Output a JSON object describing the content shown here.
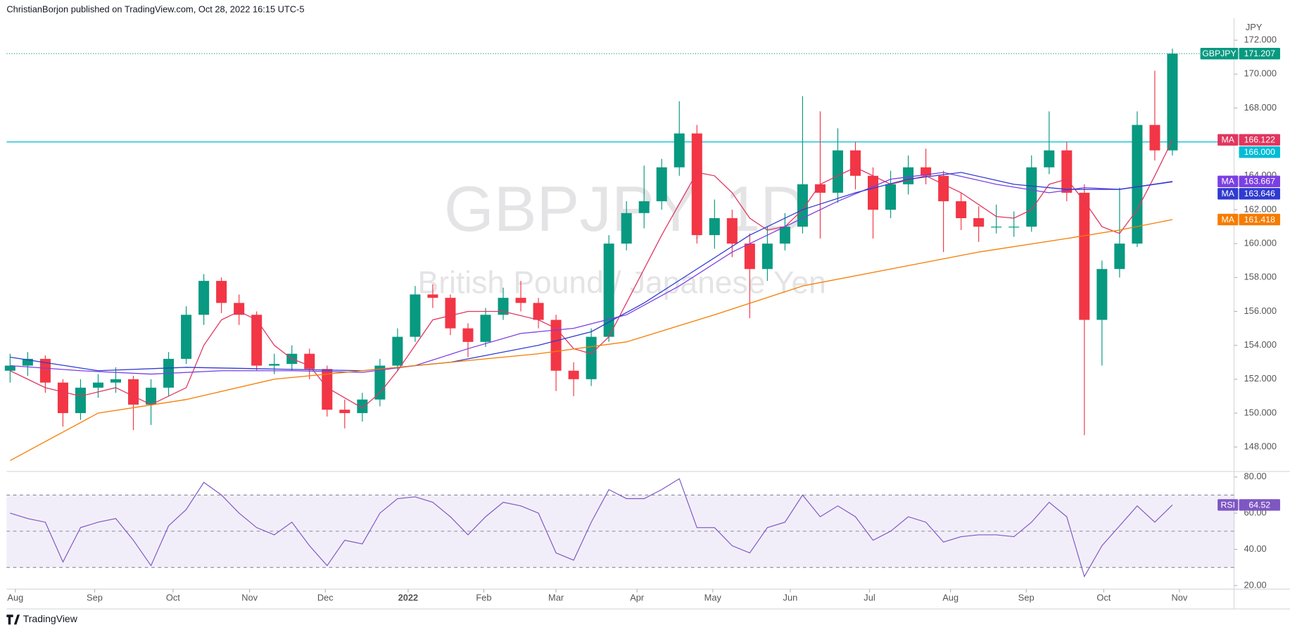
{
  "chart_data": {
    "type": "candlestick",
    "header": "ChristianBorjon published on TradingView.com, Oct 28, 2022 16:15 UTC-5",
    "symbol": "GBPJPY",
    "symbol_watermark": "GBPJPY, 1D",
    "description": "British Pound / Japanese Yen",
    "y_unit": "JPY",
    "footer": "TradingView",
    "grid": false,
    "up_color": "#089981",
    "down_color": "#f23645",
    "xlim": [
      -0.2,
      69.5
    ],
    "xticks": [
      {
        "value": 0.3,
        "label": "Aug"
      },
      {
        "value": 4.8,
        "label": "Sep"
      },
      {
        "value": 9.25,
        "label": "Oct"
      },
      {
        "value": 13.6,
        "label": "Nov"
      },
      {
        "value": 17.9,
        "label": "Dec"
      },
      {
        "value": 22.6,
        "label": "2022"
      },
      {
        "value": 26.9,
        "label": "Feb"
      },
      {
        "value": 31,
        "label": "Mar"
      },
      {
        "value": 35.6,
        "label": "Apr"
      },
      {
        "value": 39.9,
        "label": "May"
      },
      {
        "value": 44.3,
        "label": "Jun"
      },
      {
        "value": 48.8,
        "label": "Jul"
      },
      {
        "value": 53.4,
        "label": "Aug"
      },
      {
        "value": 57.7,
        "label": "Sep"
      },
      {
        "value": 62.1,
        "label": "Oct"
      },
      {
        "value": 66.4,
        "label": "Nov"
      }
    ],
    "ylim": [
      146.7,
      173.3
    ],
    "yticks": [
      {
        "value": 148,
        "label": "148.000"
      },
      {
        "value": 150,
        "label": "150.000"
      },
      {
        "value": 152,
        "label": "152.000"
      },
      {
        "value": 154,
        "label": "154.000"
      },
      {
        "value": 156,
        "label": "156.000"
      },
      {
        "value": 158,
        "label": "158.000"
      },
      {
        "value": 160,
        "label": "160.000"
      },
      {
        "value": 162,
        "label": "162.000"
      },
      {
        "value": 164,
        "label": "164.000"
      },
      {
        "value": 166,
        "label": "166.000"
      },
      {
        "value": 168,
        "label": "168.000"
      },
      {
        "value": 170,
        "label": "170.000"
      },
      {
        "value": 172,
        "label": "172.000"
      }
    ],
    "open": [
      152.5,
      152.8,
      153.2,
      151.8,
      150.0,
      151.5,
      151.8,
      152.0,
      150.5,
      151.5,
      153.2,
      155.8,
      157.8,
      156.5,
      155.8,
      152.8,
      152.9,
      153.5,
      152.6,
      150.2,
      150.0,
      150.8,
      152.8,
      154.5,
      157.0,
      156.8,
      155.0,
      154.2,
      155.8,
      156.8,
      156.5,
      155.5,
      152.5,
      152.0,
      154.5,
      160.0,
      161.8,
      162.5,
      164.5,
      166.5,
      160.5,
      161.5,
      160.0,
      158.5,
      160.0,
      161.0,
      163.5,
      163.0,
      165.5,
      164.0,
      162.0,
      163.5,
      164.5,
      164.0,
      162.5,
      161.5,
      161.0,
      161.0,
      161.0,
      164.5,
      165.5,
      163.0,
      155.5,
      158.5,
      160.0,
      167.0,
      165.5
    ],
    "high": [
      153.5,
      153.6,
      153.4,
      152.0,
      152.0,
      152.3,
      152.7,
      152.2,
      152.0,
      153.6,
      156.3,
      158.2,
      158.0,
      157.0,
      156.0,
      153.5,
      154.0,
      153.8,
      152.8,
      150.8,
      151.2,
      153.2,
      155.0,
      157.5,
      157.6,
      157.0,
      155.3,
      156.2,
      157.4,
      157.8,
      156.8,
      155.8,
      153.0,
      155.0,
      160.5,
      162.5,
      164.6,
      165.0,
      168.4,
      167.0,
      162.6,
      162.0,
      160.6,
      161.0,
      161.8,
      168.7,
      167.8,
      166.8,
      166.0,
      164.5,
      164.3,
      165.2,
      165.6,
      164.3,
      163.0,
      162.2,
      162.3,
      161.9,
      165.2,
      167.8,
      166.0,
      163.5,
      159.0,
      163.3,
      167.8,
      170.2,
      171.5
    ],
    "low": [
      151.8,
      152.2,
      151.2,
      149.2,
      149.6,
      150.9,
      151.2,
      149.0,
      149.3,
      151.0,
      152.9,
      155.2,
      155.9,
      155.2,
      152.5,
      152.3,
      152.5,
      152.0,
      149.8,
      149.1,
      149.5,
      150.4,
      152.5,
      154.2,
      156.2,
      154.6,
      153.3,
      153.9,
      155.5,
      156.0,
      155.0,
      151.3,
      151.0,
      151.6,
      154.2,
      159.6,
      160.9,
      162.0,
      164.0,
      160.0,
      159.7,
      159.2,
      155.6,
      157.8,
      159.6,
      160.6,
      160.3,
      162.4,
      163.2,
      160.3,
      161.5,
      162.9,
      163.5,
      159.5,
      160.8,
      160.1,
      160.6,
      160.4,
      160.7,
      164.1,
      162.5,
      148.7,
      152.8,
      158.0,
      159.8,
      164.9,
      165.2
    ],
    "close": [
      152.8,
      153.2,
      151.8,
      150.0,
      151.5,
      151.8,
      152.0,
      150.5,
      151.5,
      153.2,
      155.8,
      157.8,
      156.5,
      155.8,
      152.8,
      152.9,
      153.5,
      152.6,
      150.2,
      150.0,
      150.8,
      152.8,
      154.5,
      157.0,
      156.8,
      155.0,
      154.2,
      155.8,
      156.8,
      156.5,
      155.5,
      152.5,
      152.0,
      154.5,
      160.0,
      161.8,
      162.5,
      164.5,
      166.5,
      160.5,
      161.5,
      160.0,
      158.5,
      160.0,
      161.0,
      163.5,
      163.0,
      165.5,
      164.0,
      162.0,
      163.5,
      164.5,
      164.0,
      162.5,
      161.5,
      161.0,
      161.0,
      161.0,
      164.5,
      165.5,
      163.0,
      155.5,
      158.5,
      160.0,
      167.0,
      165.5,
      171.207
    ],
    "hline": {
      "value": 166,
      "label": "166.000",
      "color": "#00bcd4"
    },
    "moving_averages": [
      {
        "label": "MA",
        "color": "#e0365f",
        "x": [
          0,
          2,
          4,
          6,
          8,
          10,
          11,
          12,
          13,
          14,
          15,
          16,
          17,
          18,
          20,
          21,
          22,
          23,
          24,
          26,
          28,
          30,
          31,
          32,
          33,
          34,
          35,
          37,
          39,
          40,
          41,
          42,
          43,
          44,
          45,
          46,
          48,
          50,
          52,
          54,
          56,
          57,
          58,
          59,
          60,
          61,
          62,
          63,
          64,
          65,
          66
        ],
        "values": [
          152.5,
          151.5,
          151,
          151.5,
          150.5,
          151.5,
          154,
          155.5,
          156,
          155.5,
          154,
          153.2,
          152.8,
          151.5,
          150.3,
          151.2,
          152.5,
          154,
          155.5,
          156,
          156,
          155.5,
          155,
          153.8,
          153.5,
          154.5,
          156.5,
          160.5,
          164.2,
          164,
          163,
          161.5,
          160.8,
          161,
          162,
          163.5,
          164.5,
          163.5,
          164,
          163,
          161.6,
          161.5,
          162,
          163.5,
          163.8,
          162.5,
          161,
          160.6,
          162,
          164,
          166.122
        ]
      },
      {
        "label": "MA",
        "color": "#7b3fe4",
        "x": [
          0,
          4,
          8,
          12,
          16,
          20,
          23,
          26,
          29,
          32,
          35,
          38,
          41,
          44,
          47,
          50,
          53,
          56,
          59,
          61,
          63,
          66
        ],
        "values": [
          152.8,
          152.5,
          152.3,
          152.5,
          152.5,
          152.4,
          152.8,
          153.8,
          154.7,
          155,
          155.8,
          157.5,
          159.5,
          161,
          162.5,
          163.8,
          164.2,
          163.5,
          163,
          163.3,
          163.2,
          163.667
        ]
      },
      {
        "label": "MA",
        "color": "#2f3bd0",
        "x": [
          0,
          5,
          10,
          15,
          20,
          25,
          30,
          33,
          36,
          39,
          42,
          45,
          48,
          51,
          54,
          57,
          60,
          63,
          66
        ],
        "values": [
          153.3,
          152.5,
          152.7,
          152.6,
          152.5,
          153,
          154,
          154.8,
          156.5,
          158.5,
          160.5,
          162,
          163,
          163.8,
          164.2,
          163.5,
          163.2,
          163.2,
          163.646
        ]
      },
      {
        "label": "MA",
        "color": "#f57c00",
        "x": [
          0,
          5,
          10,
          15,
          20,
          25,
          30,
          35,
          40,
          45,
          50,
          55,
          60,
          63,
          66
        ],
        "values": [
          147.2,
          150,
          150.8,
          152,
          152.5,
          153,
          153.5,
          154.2,
          155.8,
          157.5,
          158.5,
          159.5,
          160.3,
          160.8,
          161.418
        ]
      }
    ],
    "rsi": {
      "label": "RSI",
      "color": "#7e57c2",
      "ylim": [
        18,
        83
      ],
      "yticks": [
        {
          "value": 20,
          "label": "20.00"
        },
        {
          "value": 40,
          "label": "40.00"
        },
        {
          "value": 60,
          "label": "60.00"
        },
        {
          "value": 80,
          "label": "80.00"
        }
      ],
      "levels": [
        30,
        50,
        70
      ],
      "values": [
        60,
        57,
        55,
        33,
        52,
        55,
        57,
        45,
        31,
        53,
        62,
        77,
        70,
        60,
        52,
        48,
        55,
        42,
        31,
        45,
        43,
        60,
        68,
        69,
        66,
        58,
        48,
        58,
        66,
        64,
        60,
        38,
        34,
        55,
        73,
        68,
        68,
        73,
        79,
        52,
        52,
        42,
        38,
        52,
        55,
        70,
        58,
        64,
        58,
        45,
        50,
        58,
        55,
        44,
        47,
        48,
        48,
        47,
        55,
        66,
        58,
        25,
        42,
        53,
        64,
        55,
        64.52
      ]
    }
  }
}
